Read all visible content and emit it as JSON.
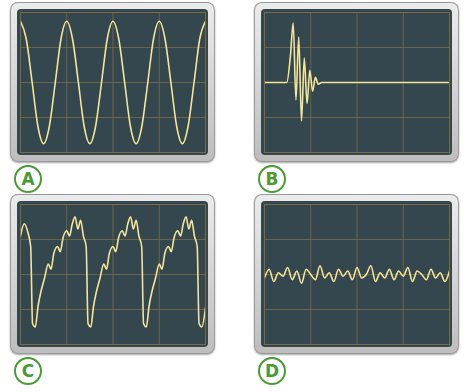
{
  "chart_data": [
    {
      "type": "line",
      "title": "A",
      "color": "#f3e59b",
      "grid": true,
      "tick_labels": false,
      "xlim": [
        0,
        10
      ],
      "ylim": [
        -4,
        4
      ],
      "xticks": [
        0,
        2.5,
        5,
        7.5,
        10
      ],
      "yticks": [
        -4,
        -2,
        0,
        2,
        4
      ],
      "x": [
        0,
        0.31,
        0.63,
        0.94,
        1.25,
        1.56,
        1.88,
        2.19,
        2.5,
        2.81,
        3.13,
        3.44,
        3.75,
        4.06,
        4.38,
        4.69,
        5,
        5.31,
        5.63,
        5.94,
        6.25,
        6.56,
        6.88,
        7.19,
        7.5,
        7.81,
        8.13,
        8.44,
        8.75,
        9.06,
        9.38,
        9.69,
        10
      ],
      "values": [
        3.5,
        2.5,
        0,
        -2.5,
        -3.5,
        -2.5,
        0,
        2.5,
        3.5,
        2.5,
        0,
        -2.5,
        -3.5,
        -2.5,
        0,
        2.5,
        3.5,
        2.5,
        0,
        -2.5,
        -3.5,
        -2.5,
        0,
        2.5,
        3.5,
        2.5,
        0,
        -2.5,
        -3.5,
        -2.5,
        0,
        2.5,
        3.5
      ]
    },
    {
      "type": "line",
      "title": "B",
      "color": "#f3e59b",
      "grid": true,
      "tick_labels": false,
      "xlim": [
        0,
        10
      ],
      "ylim": [
        -4,
        4
      ],
      "xticks": [
        0,
        2.5,
        5,
        7.5,
        10
      ],
      "yticks": [
        -4,
        -2,
        0,
        2,
        4
      ],
      "x": [
        0,
        1.2,
        1.4,
        1.55,
        1.7,
        1.85,
        2.0,
        2.15,
        2.3,
        2.45,
        2.6,
        2.75,
        2.9,
        3.1,
        10
      ],
      "values": [
        0,
        0,
        1.5,
        3.4,
        -1.0,
        2.6,
        -2.2,
        1.4,
        -1.2,
        0.7,
        -0.5,
        0.3,
        -0.1,
        0,
        0
      ]
    },
    {
      "type": "line",
      "title": "C",
      "color": "#f3e59b",
      "grid": true,
      "tick_labels": false,
      "xlim": [
        0,
        10
      ],
      "ylim": [
        -4,
        4
      ],
      "xticks": [
        0,
        2.5,
        5,
        7.5,
        10
      ],
      "yticks": [
        -4,
        -2,
        0,
        2,
        4
      ],
      "x": [
        0,
        0.2,
        0.4,
        0.55,
        0.65,
        0.8,
        0.95,
        1.1,
        1.3,
        1.5,
        1.65,
        1.8,
        2.0,
        2.15,
        2.3,
        2.5,
        2.65,
        2.8,
        2.95,
        3.1,
        3.25,
        3.4,
        3.55,
        3.65,
        3.8,
        3.95,
        4.1,
        4.3,
        4.5,
        4.65,
        4.8,
        5.0,
        5.15,
        5.3,
        5.5,
        5.65,
        5.8,
        5.95,
        6.1,
        6.25,
        6.4,
        6.55,
        6.65,
        6.8,
        6.95,
        7.1,
        7.3,
        7.5,
        7.65,
        7.8,
        8.0,
        8.15,
        8.3,
        8.5,
        8.65,
        8.8,
        8.95,
        9.1,
        9.25,
        9.4,
        9.55,
        9.65,
        9.8,
        10
      ],
      "values": [
        2.2,
        2.9,
        2.4,
        1.6,
        -2.8,
        -3.0,
        -1.8,
        -1.0,
        -0.2,
        0.6,
        0.3,
        1.2,
        1.6,
        1.3,
        2.1,
        2.5,
        2.2,
        2.9,
        3.3,
        2.6,
        3.1,
        2.2,
        1.6,
        -2.8,
        -3.0,
        -1.8,
        -1.0,
        -0.2,
        0.6,
        0.3,
        1.2,
        1.6,
        1.3,
        2.1,
        2.5,
        2.2,
        2.9,
        3.3,
        2.6,
        3.1,
        2.2,
        1.6,
        -2.8,
        -3.0,
        -1.8,
        -1.0,
        -0.2,
        0.6,
        0.3,
        1.2,
        1.6,
        1.3,
        2.1,
        2.5,
        2.2,
        2.9,
        3.3,
        2.6,
        3.1,
        2.2,
        1.6,
        -2.8,
        -3.0,
        -1.9
      ]
    },
    {
      "type": "line",
      "title": "D",
      "color": "#f3e59b",
      "grid": true,
      "tick_labels": false,
      "xlim": [
        0,
        10
      ],
      "ylim": [
        -4,
        4
      ],
      "xticks": [
        0,
        2.5,
        5,
        7.5,
        10
      ],
      "yticks": [
        -4,
        -2,
        0,
        2,
        4
      ],
      "x": [
        0,
        0.25,
        0.5,
        0.75,
        1,
        1.25,
        1.5,
        1.75,
        2,
        2.25,
        2.5,
        2.75,
        3,
        3.25,
        3.5,
        3.75,
        4,
        4.25,
        4.5,
        4.75,
        5,
        5.25,
        5.5,
        5.75,
        6,
        6.25,
        6.5,
        6.75,
        7,
        7.25,
        7.5,
        7.75,
        8,
        8.25,
        8.5,
        8.75,
        9,
        9.25,
        9.5,
        9.75,
        10
      ],
      "values": [
        -0.2,
        0.3,
        -0.4,
        0.1,
        -0.1,
        0.4,
        -0.3,
        0.2,
        -0.5,
        0.3,
        0,
        -0.3,
        0.5,
        -0.2,
        0.1,
        -0.4,
        0.3,
        -0.1,
        0.2,
        -0.3,
        0.4,
        -0.2,
        0,
        0.5,
        -0.4,
        0.1,
        -0.2,
        0.3,
        -0.3,
        0.2,
        -0.1,
        0.4,
        -0.4,
        0.2,
        0,
        -0.3,
        0.3,
        -0.2,
        0.1,
        -0.4,
        0.2
      ]
    }
  ]
}
